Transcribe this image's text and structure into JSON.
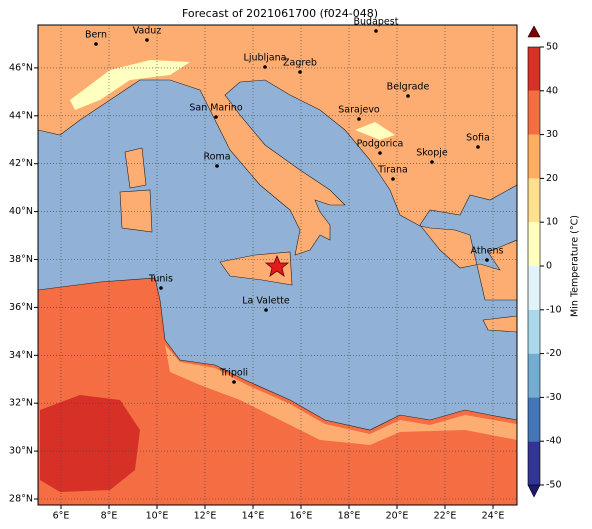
{
  "title": "Forecast of 2021061700 (f024-048)",
  "lon_ticks": [
    "6°E",
    "8°E",
    "10°E",
    "12°E",
    "14°E",
    "16°E",
    "18°E",
    "20°E",
    "22°E",
    "24°E"
  ],
  "lat_ticks": [
    "28°N",
    "30°N",
    "32°N",
    "34°N",
    "36°N",
    "38°N",
    "40°N",
    "42°N",
    "44°N",
    "46°N"
  ],
  "cities": [
    "Bern",
    "Vaduz",
    "Budapest",
    "Ljubljana",
    "Zagreb",
    "Belgrade",
    "San Marino",
    "Sarajevo",
    "Sofia",
    "Podgorica",
    "Skopje",
    "Roma",
    "Tirana",
    "Athens",
    "Tunis",
    "La Valette",
    "Tripoli"
  ],
  "colorbar": {
    "label": "Min Temperature (°C)",
    "ticks": [
      -50,
      -40,
      -30,
      -20,
      -10,
      0,
      10,
      20,
      30,
      40,
      50
    ],
    "colors": [
      "#313695",
      "#4575b4",
      "#74add1",
      "#abd9e9",
      "#e0f3f8",
      "#ffffbf",
      "#fee090",
      "#fdae61",
      "#f46d43",
      "#d73027"
    ]
  }
}
